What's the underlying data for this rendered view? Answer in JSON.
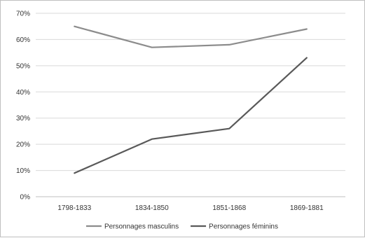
{
  "chart_data": {
    "type": "line",
    "title": "",
    "xlabel": "",
    "ylabel": "",
    "categories": [
      "1798-1833",
      "1834-1850",
      "1851-1868",
      "1869-1881"
    ],
    "ylim": [
      0,
      70
    ],
    "yticks": [
      0,
      10,
      20,
      30,
      40,
      50,
      60,
      70
    ],
    "ytick_labels": [
      "0%",
      "10%",
      "20%",
      "30%",
      "40%",
      "50%",
      "60%",
      "70%"
    ],
    "grid": "horizontal",
    "legend_position": "bottom",
    "series": [
      {
        "name": "Personnages masculins",
        "values": [
          65,
          57,
          58,
          64
        ],
        "color": "#8c8c8c"
      },
      {
        "name": "Personnages féminins",
        "values": [
          9,
          22,
          26,
          53
        ],
        "color": "#595959"
      }
    ]
  }
}
